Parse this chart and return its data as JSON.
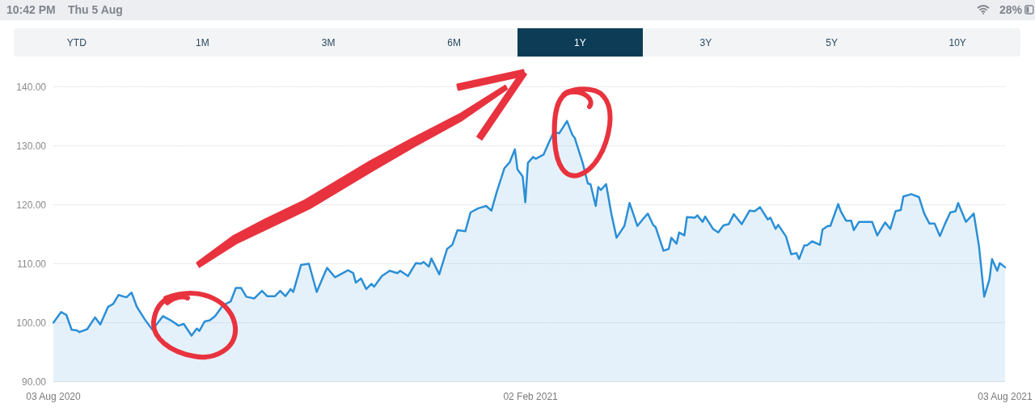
{
  "chart_data": {
    "type": "area",
    "annotations": [
      "YTD",
      "1M",
      "3M",
      "6M",
      "1Y",
      "3Y",
      "5Y",
      "10Y",
      "10:42 PM",
      "Thu 5 Aug",
      "28%"
    ],
    "x": [
      "2020-08-03",
      "2020-08-06",
      "2020-08-08",
      "2020-08-10",
      "2020-08-12",
      "2020-08-13",
      "2020-08-16",
      "2020-08-19",
      "2020-08-21",
      "2020-08-24",
      "2020-08-26",
      "2020-08-28",
      "2020-08-31",
      "2020-09-02",
      "2020-09-04",
      "2020-09-07",
      "2020-09-10",
      "2020-09-14",
      "2020-09-17",
      "2020-09-20",
      "2020-09-22",
      "2020-09-25",
      "2020-09-27",
      "2020-09-28",
      "2020-09-30",
      "2020-10-02",
      "2020-10-04",
      "2020-10-07",
      "2020-10-10",
      "2020-10-12",
      "2020-10-14",
      "2020-10-16",
      "2020-10-19",
      "2020-10-22",
      "2020-10-24",
      "2020-10-27",
      "2020-10-29",
      "2020-10-31",
      "2020-11-02",
      "2020-11-03",
      "2020-11-06",
      "2020-11-09",
      "2020-11-12",
      "2020-11-14",
      "2020-11-16",
      "2020-11-19",
      "2020-11-24",
      "2020-11-26",
      "2020-11-27",
      "2020-11-29",
      "2020-12-01",
      "2020-12-03",
      "2020-12-04",
      "2020-12-07",
      "2020-12-10",
      "2020-12-13",
      "2020-12-14",
      "2020-12-17",
      "2020-12-20",
      "2020-12-22",
      "2020-12-23",
      "2020-12-25",
      "2020-12-26",
      "2020-12-29",
      "2021-01-01",
      "2021-01-03",
      "2021-01-05",
      "2021-01-08",
      "2021-01-10",
      "2021-01-13",
      "2021-01-16",
      "2021-01-18",
      "2021-01-20",
      "2021-01-23",
      "2021-01-25",
      "2021-01-27",
      "2021-01-28",
      "2021-01-30",
      "2021-01-31",
      "2021-02-01",
      "2021-02-03",
      "2021-02-04",
      "2021-02-07",
      "2021-02-09",
      "2021-02-11",
      "2021-02-13",
      "2021-02-16",
      "2021-02-18",
      "2021-02-19",
      "2021-02-22",
      "2021-02-24",
      "2021-02-25",
      "2021-02-27",
      "2021-02-28",
      "2021-03-01",
      "2021-03-03",
      "2021-03-05",
      "2021-03-07",
      "2021-03-10",
      "2021-03-12",
      "2021-03-15",
      "2021-03-17",
      "2021-03-19",
      "2021-03-21",
      "2021-03-22",
      "2021-03-25",
      "2021-03-27",
      "2021-03-28",
      "2021-03-30",
      "2021-03-31",
      "2021-04-02",
      "2021-04-03",
      "2021-04-06",
      "2021-04-07",
      "2021-04-09",
      "2021-04-10",
      "2021-04-13",
      "2021-04-15",
      "2021-04-17",
      "2021-04-19",
      "2021-04-21",
      "2021-04-24",
      "2021-04-27",
      "2021-04-29",
      "2021-05-01",
      "2021-05-04",
      "2021-05-05",
      "2021-05-07",
      "2021-05-08",
      "2021-05-11",
      "2021-05-13",
      "2021-05-15",
      "2021-05-16",
      "2021-05-18",
      "2021-05-19",
      "2021-05-21",
      "2021-05-24",
      "2021-05-25",
      "2021-05-27",
      "2021-05-28",
      "2021-05-31",
      "2021-06-01",
      "2021-06-03",
      "2021-06-05",
      "2021-06-06",
      "2021-06-08",
      "2021-06-10",
      "2021-06-13",
      "2021-06-15",
      "2021-06-18",
      "2021-06-20",
      "2021-06-22",
      "2021-06-24",
      "2021-06-25",
      "2021-06-28",
      "2021-07-01",
      "2021-07-03",
      "2021-07-05",
      "2021-07-07",
      "2021-07-09",
      "2021-07-11",
      "2021-07-13",
      "2021-07-15",
      "2021-07-16",
      "2021-07-19",
      "2021-07-22",
      "2021-07-24",
      "2021-07-26",
      "2021-07-28",
      "2021-07-29",
      "2021-07-31",
      "2021-08-01",
      "2021-08-03"
    ],
    "series": [
      {
        "color": "#2b8fd6",
        "values": [
          100.0,
          101.8,
          101.3,
          98.8,
          98.7,
          98.4,
          98.9,
          100.9,
          99.7,
          102.7,
          103.2,
          104.7,
          104.3,
          105.1,
          102.7,
          100.6,
          98.8,
          101.1,
          100.4,
          99.5,
          99.8,
          97.8,
          99.0,
          98.6,
          100.2,
          100.4,
          101.1,
          102.9,
          103.6,
          105.9,
          105.9,
          104.4,
          104.1,
          105.4,
          104.5,
          104.5,
          105.4,
          104.5,
          105.7,
          105.2,
          109.8,
          110.0,
          105.2,
          107.3,
          109.3,
          107.7,
          108.9,
          108.4,
          106.8,
          107.5,
          105.7,
          106.6,
          106.1,
          107.9,
          108.8,
          108.4,
          108.8,
          107.9,
          110.1,
          110.0,
          110.3,
          109.5,
          110.9,
          108.2,
          112.5,
          113.2,
          115.7,
          115.5,
          118.7,
          119.4,
          119.8,
          119.0,
          122.1,
          126.2,
          127.2,
          129.4,
          126.0,
          124.8,
          120.4,
          127.1,
          128.1,
          127.8,
          128.5,
          130.5,
          132.4,
          132.1,
          134.2,
          131.9,
          131.3,
          127.1,
          123.6,
          123.5,
          119.8,
          123.0,
          122.5,
          123.5,
          118.5,
          114.4,
          116.4,
          120.3,
          116.4,
          117.5,
          118.5,
          116.6,
          116.2,
          112.2,
          112.5,
          114.4,
          113.4,
          115.3,
          114.8,
          117.9,
          117.8,
          118.2,
          117.1,
          118.0,
          115.9,
          115.3,
          116.5,
          116.7,
          118.4,
          116.7,
          119.0,
          118.9,
          119.6,
          117.5,
          117.8,
          115.9,
          116.6,
          114.6,
          111.6,
          111.8,
          110.8,
          113.1,
          113.1,
          113.8,
          113.2,
          115.8,
          116.4,
          116.4,
          120.1,
          118.9,
          117.3,
          117.3,
          115.7,
          117.1,
          117.1,
          117.1,
          114.8,
          117.0,
          115.9,
          118.9,
          119.1,
          121.4,
          121.8,
          121.3,
          118.5,
          116.8,
          116.8,
          114.7,
          116.8,
          118.7,
          118.9,
          120.3,
          117.1,
          118.5,
          113.0,
          104.4,
          107.3,
          110.8,
          108.8,
          110.1,
          109.4
        ]
      }
    ],
    "xlim": [
      "2020-08-03",
      "2021-08-03"
    ],
    "xticks": [
      {
        "value": "2020-08-03",
        "label": "03 Aug 2020"
      },
      {
        "value": "2021-02-02",
        "label": "02 Feb 2021"
      },
      {
        "value": "2021-08-03",
        "label": "03 Aug 2021"
      }
    ],
    "ylim": [
      90,
      140
    ],
    "yticks": [
      {
        "value": 90,
        "label": "90.00"
      },
      {
        "value": 100,
        "label": "100.00"
      },
      {
        "value": 110,
        "label": "110.00"
      },
      {
        "value": 120,
        "label": "120.00"
      },
      {
        "value": 130,
        "label": "130.00"
      },
      {
        "value": 140,
        "label": "140.00"
      }
    ],
    "grid": "y",
    "marker": "none",
    "line_style": "solid"
  }
}
